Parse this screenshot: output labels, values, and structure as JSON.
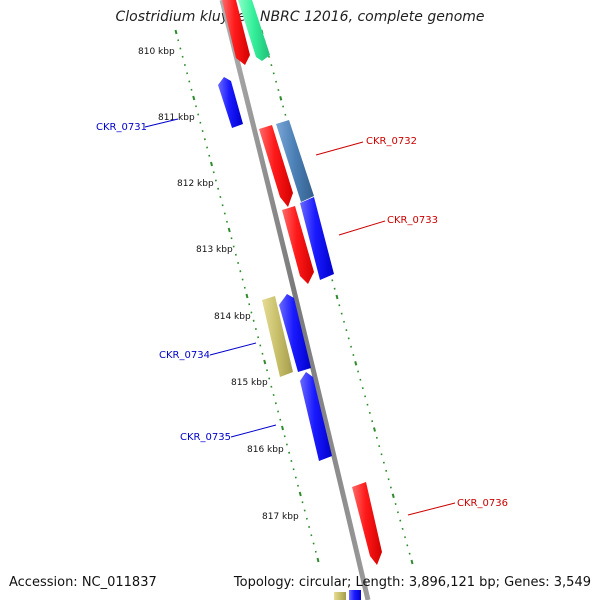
{
  "title": "Clostridium kluyveri NBRC 12016, complete genome",
  "footer": {
    "accession": "Accession: NC_011837",
    "summary": "Topology: circular; Length: 3,896,121 bp; Genes: 3,549"
  },
  "colors": {
    "backbone": "#8a8a8a",
    "tick": "#2e8b2e",
    "forward_label": "#cc0000",
    "reverse_label": "#0000cc",
    "red": "#ff1a1a",
    "blue": "#1a1aff",
    "teal": "#33ee99",
    "steel": "#4a7fb5",
    "khaki": "#c8bf6a"
  },
  "ticks": [
    {
      "label": "810 kbp"
    },
    {
      "label": "811 kbp"
    },
    {
      "label": "812 kbp"
    },
    {
      "label": "813 kbp"
    },
    {
      "label": "814 kbp"
    },
    {
      "label": "815 kbp"
    },
    {
      "label": "816 kbp"
    },
    {
      "label": "817 kbp"
    }
  ],
  "gene_labels": [
    {
      "name": "CKR_0731",
      "strand": "reverse"
    },
    {
      "name": "CKR_0732",
      "strand": "forward"
    },
    {
      "name": "CKR_0733",
      "strand": "forward"
    },
    {
      "name": "CKR_0734",
      "strand": "reverse"
    },
    {
      "name": "CKR_0735",
      "strand": "reverse"
    },
    {
      "name": "CKR_0736",
      "strand": "forward"
    }
  ]
}
